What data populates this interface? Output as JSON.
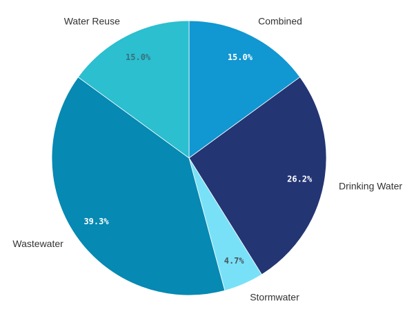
{
  "chart_data": {
    "type": "pie",
    "title": "",
    "start_angle_deg": 0,
    "direction": "clockwise",
    "slices": [
      {
        "name": "Combined",
        "value": 15.0,
        "label": "15.0%",
        "color": "#1197d1",
        "pct_color": "#ffffff"
      },
      {
        "name": "Drinking Water",
        "value": 26.2,
        "label": "26.2%",
        "color": "#243574",
        "pct_color": "#ffffff"
      },
      {
        "name": "Stormwater",
        "value": 4.7,
        "label": "4.7%",
        "color": "#79e1f7",
        "pct_color": "#4a5560"
      },
      {
        "name": "Wastewater",
        "value": 39.3,
        "label": "39.3%",
        "color": "#0689b2",
        "pct_color": "#ffffff"
      },
      {
        "name": "Water Reuse",
        "value": 15.0,
        "label": "15.0%",
        "color": "#2bbfcf",
        "pct_color": "#39707a"
      }
    ]
  }
}
